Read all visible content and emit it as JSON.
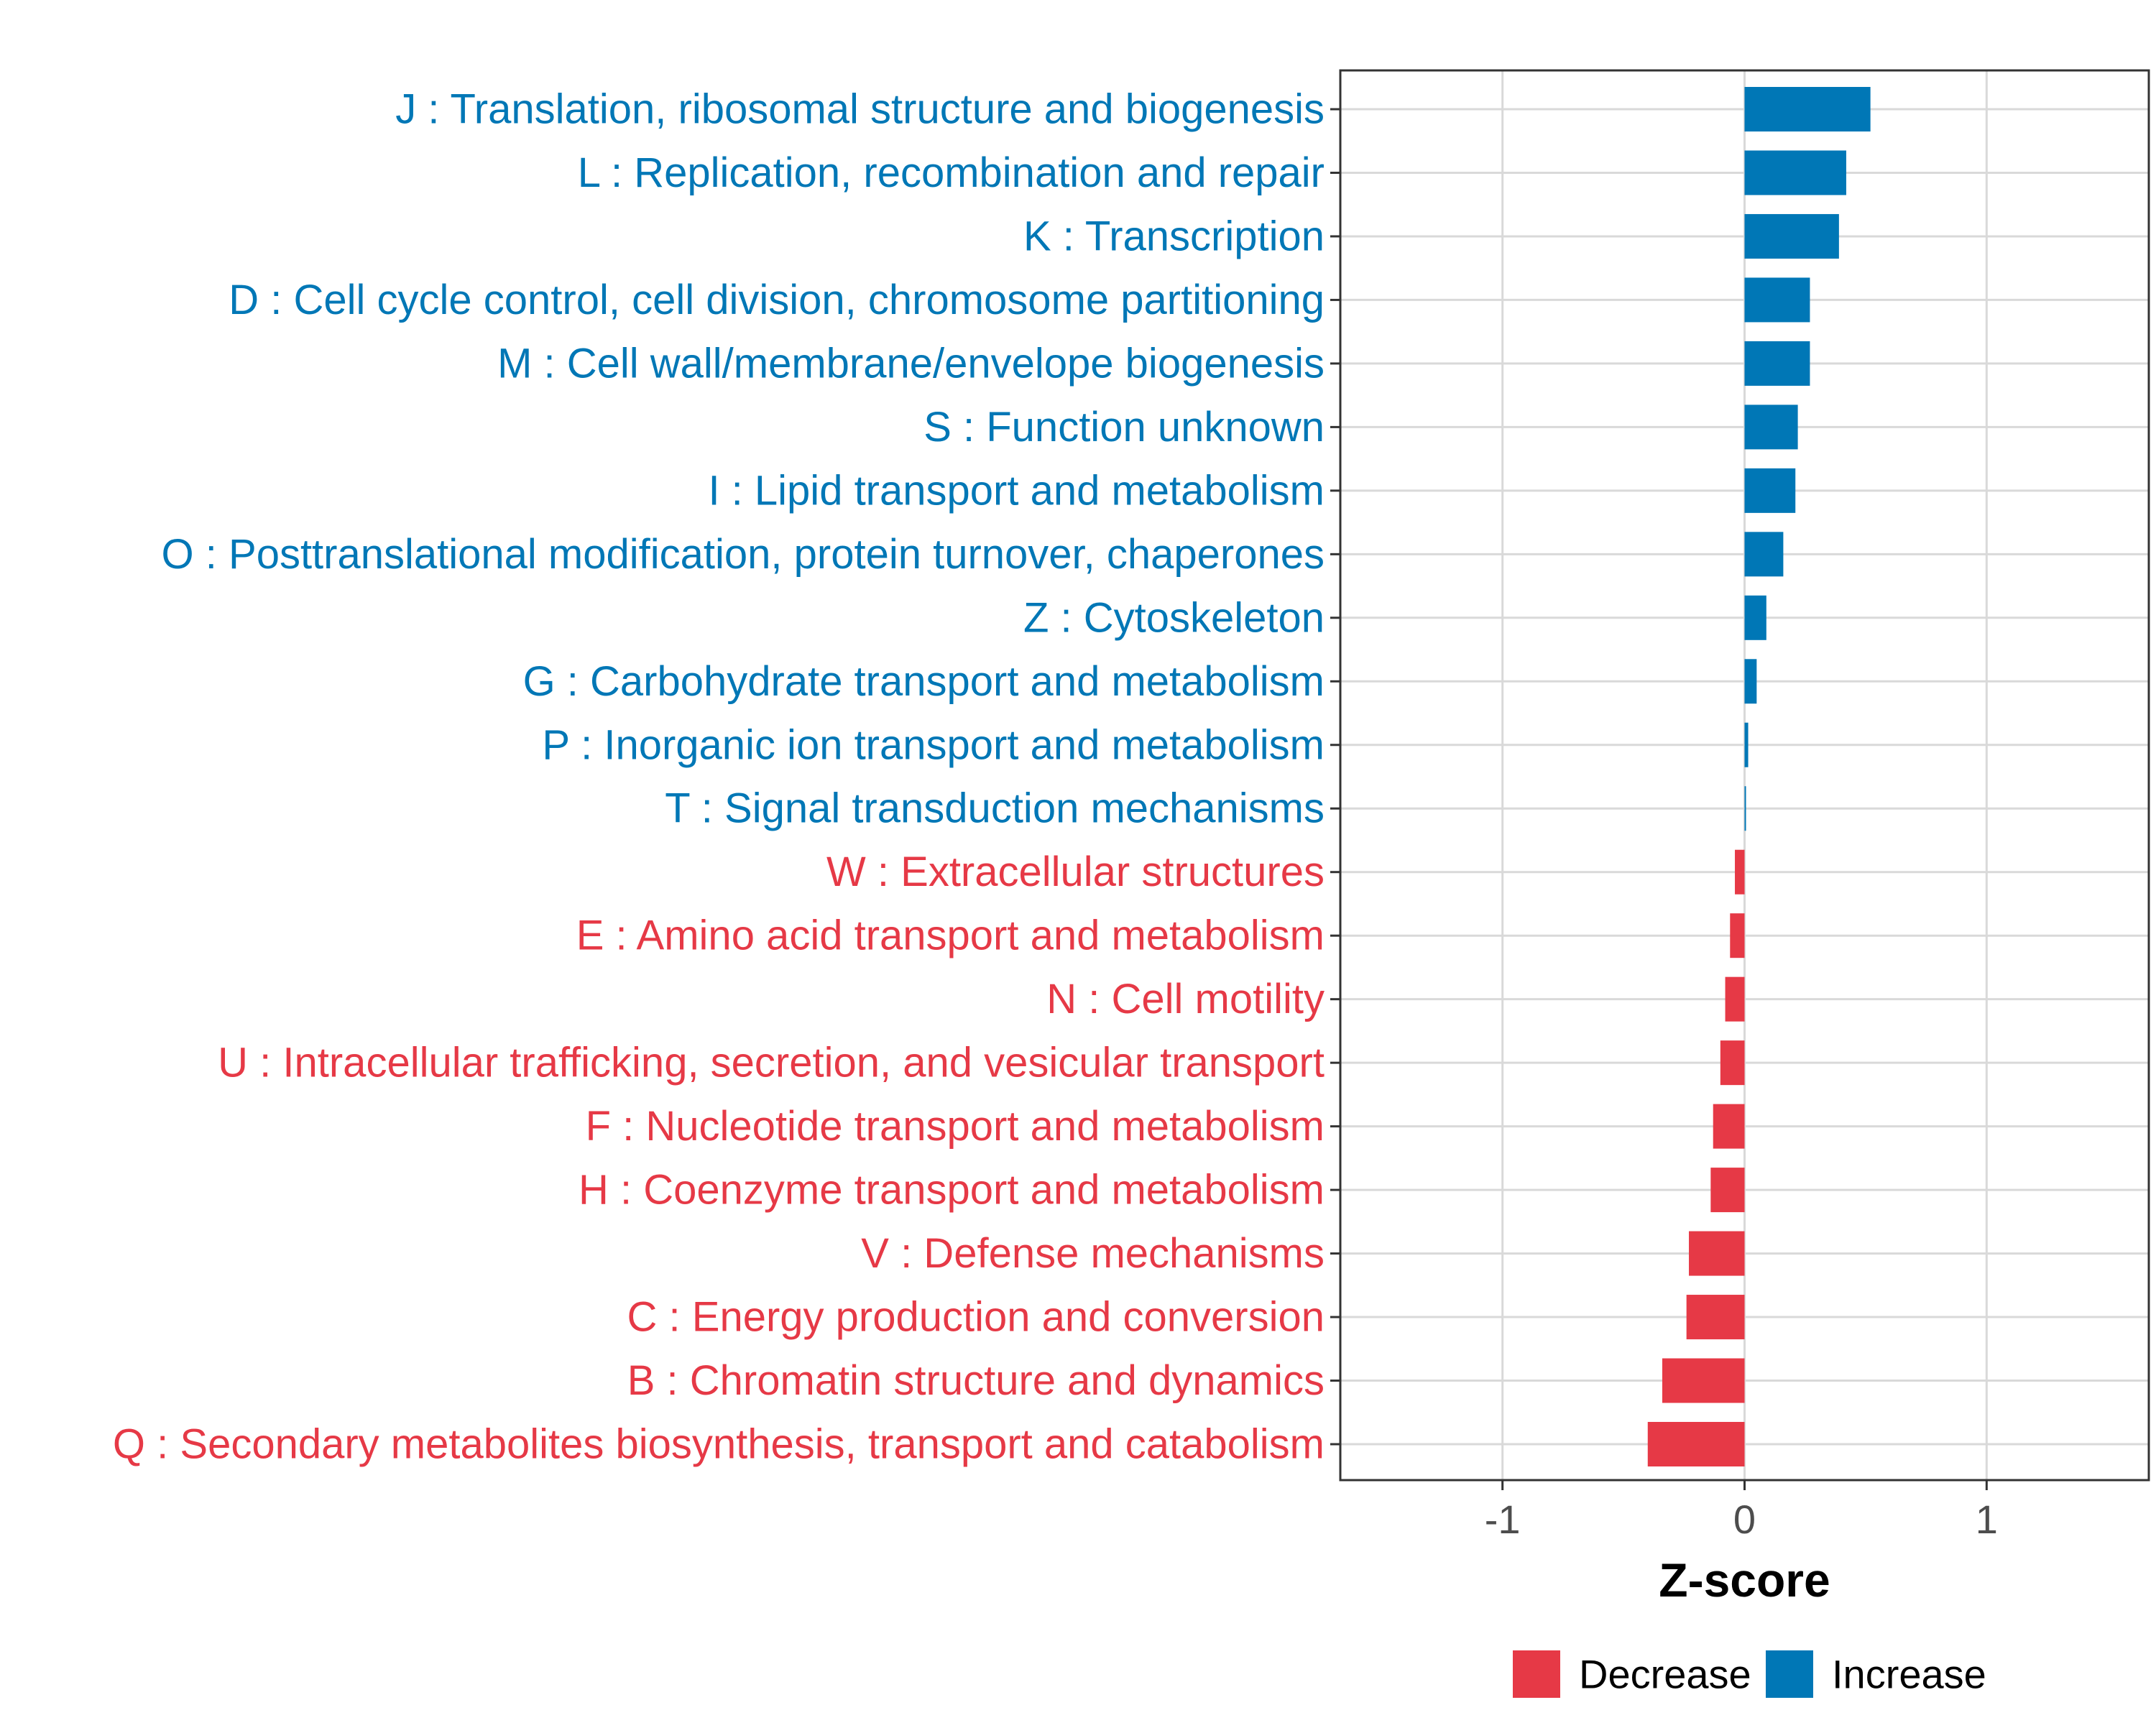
{
  "chart_data": {
    "type": "bar",
    "orientation": "horizontal",
    "title": "",
    "xlabel": "Z-score",
    "ylabel": "",
    "xlim": [
      -1.67,
      1.67
    ],
    "xticks": [
      -1,
      0,
      1
    ],
    "xtick_labels": [
      "-1",
      "0",
      "1"
    ],
    "grid": true,
    "legend_position": "bottom",
    "categories": [
      "J : Translation, ribosomal structure and biogenesis",
      "L : Replication, recombination and repair",
      "K : Transcription",
      "D : Cell cycle control, cell division, chromosome partitioning",
      "M : Cell wall/membrane/envelope biogenesis",
      "S : Function unknown",
      "I : Lipid transport and metabolism",
      "O : Posttranslational modification, protein turnover, chaperones",
      "Z : Cytoskeleton",
      "G : Carbohydrate transport and metabolism",
      "P : Inorganic ion transport and metabolism",
      "T : Signal transduction mechanisms",
      "W : Extracellular structures",
      "E : Amino acid transport and metabolism",
      "N : Cell motility",
      "U : Intracellular trafficking, secretion, and vesicular transport",
      "F : Nucleotide transport and metabolism",
      "H : Coenzyme transport and metabolism",
      "V : Defense mechanisms",
      "C : Energy production and conversion",
      "B : Chromatin structure and dynamics",
      "Q : Secondary metabolites biosynthesis, transport and catabolism"
    ],
    "values": [
      0.52,
      0.42,
      0.39,
      0.27,
      0.27,
      0.22,
      0.21,
      0.16,
      0.09,
      0.05,
      0.015,
      0.005,
      -0.04,
      -0.06,
      -0.08,
      -0.1,
      -0.13,
      -0.14,
      -0.23,
      -0.24,
      -0.34,
      -0.4
    ],
    "groups": [
      "Increase",
      "Increase",
      "Increase",
      "Increase",
      "Increase",
      "Increase",
      "Increase",
      "Increase",
      "Increase",
      "Increase",
      "Increase",
      "Increase",
      "Decrease",
      "Decrease",
      "Decrease",
      "Decrease",
      "Decrease",
      "Decrease",
      "Decrease",
      "Decrease",
      "Decrease",
      "Decrease"
    ],
    "legend": [
      {
        "name": "Decrease",
        "color": "#e63946"
      },
      {
        "name": "Increase",
        "color": "#0077b6"
      }
    ],
    "colors": {
      "Increase": "#0077b6",
      "Decrease": "#e63946",
      "grid": "#d9d9d9",
      "panel_border": "#333333"
    }
  }
}
